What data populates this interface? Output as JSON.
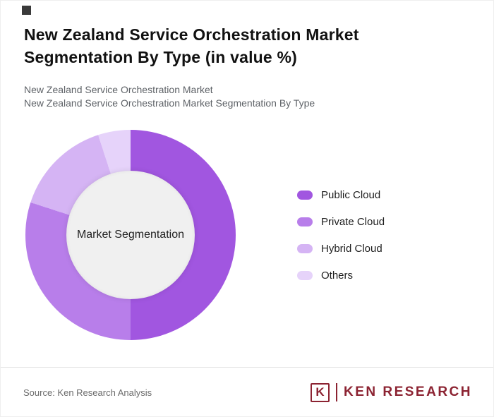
{
  "header": {
    "title": "New Zealand Service Orchestration Market Segmentation By Type (in value %)",
    "subtitle_line1": "New Zealand Service Orchestration Market",
    "subtitle_line2": "New Zealand Service Orchestration Market Segmentation By Type"
  },
  "chart_data": {
    "type": "pie",
    "variant": "donut",
    "title": "New Zealand Service Orchestration Market Segmentation By Type (in value %)",
    "center_label": "Market Segmentation",
    "categories": [
      "Public Cloud",
      "Private Cloud",
      "Hybrid Cloud",
      "Others"
    ],
    "values": [
      50,
      30,
      15,
      5
    ],
    "unit": "value %",
    "colors": [
      "#a156e0",
      "#b87eea",
      "#d5b4f4",
      "#e6d3fa"
    ],
    "center_color": "#f0f0f0",
    "legend_position": "right",
    "start_angle_deg": 0,
    "direction": "clockwise"
  },
  "footer": {
    "source": "Source: Ken Research Analysis",
    "logo": {
      "monogram": "K",
      "brand": "KEN RESEARCH",
      "brand_color": "#8c2332"
    }
  }
}
